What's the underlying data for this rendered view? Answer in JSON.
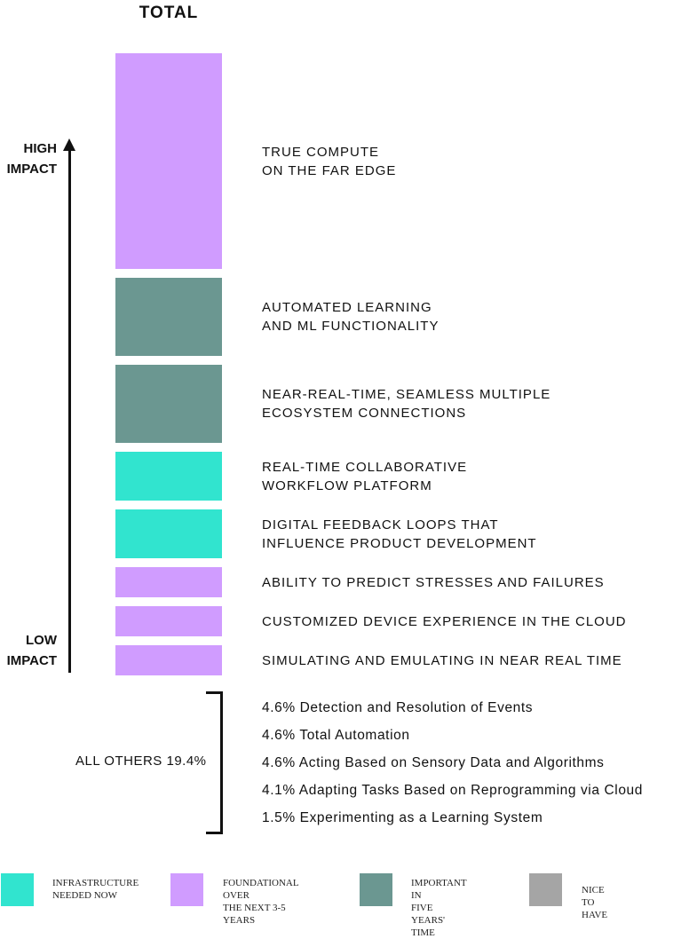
{
  "chart_data": {
    "type": "bar",
    "title": "TOTAL",
    "axis": {
      "high_label": "HIGH\nIMPACT",
      "low_label": "LOW\nIMPACT"
    },
    "bars": [
      {
        "label": "TRUE COMPUTE\nON THE FAR EDGE",
        "size": 243,
        "category": "foundational"
      },
      {
        "label": "AUTOMATED LEARNING\nAND ML FUNCTIONALITY",
        "size": 88,
        "category": "important"
      },
      {
        "label": "NEAR-REAL-TIME, SEAMLESS MULTIPLE\nECOSYSTEM CONNECTIONS",
        "size": 88,
        "category": "important"
      },
      {
        "label": "REAL-TIME COLLABORATIVE\nWORKFLOW PLATFORM",
        "size": 55,
        "category": "infrastructure"
      },
      {
        "label": "DIGITAL FEEDBACK LOOPS THAT\nINFLUENCE PRODUCT DEVELOPMENT",
        "size": 55,
        "category": "infrastructure"
      },
      {
        "label": "ABILITY TO PREDICT STRESSES AND FAILURES",
        "size": 34,
        "category": "foundational"
      },
      {
        "label": "CUSTOMIZED DEVICE EXPERIENCE IN THE CLOUD",
        "size": 34,
        "category": "foundational"
      },
      {
        "label": "SIMULATING AND EMULATING IN NEAR REAL TIME",
        "size": 34,
        "category": "foundational"
      }
    ],
    "others": {
      "label": "ALL OTHERS 19.4%",
      "items": [
        "4.6% Detection and Resolution of Events",
        "4.6% Total Automation",
        "4.6% Acting Based on Sensory Data and Algorithms",
        "4.1% Adapting Tasks Based on Reprogramming via Cloud",
        "1.5% Experimenting as a Learning System"
      ]
    },
    "legend": [
      {
        "key": "infrastructure",
        "label": "INFRASTRUCTURE\nNEEDED NOW",
        "color": "#31e4cf"
      },
      {
        "key": "foundational",
        "label": "FOUNDATIONAL OVER\nTHE NEXT 3-5 YEARS",
        "color": "#d09cff"
      },
      {
        "key": "important",
        "label": "IMPORTANT IN\nFIVE YEARS' TIME",
        "color": "#6b9791"
      },
      {
        "key": "nice",
        "label": "NICE TO HAVE",
        "color": "#a5a5a5"
      }
    ]
  }
}
